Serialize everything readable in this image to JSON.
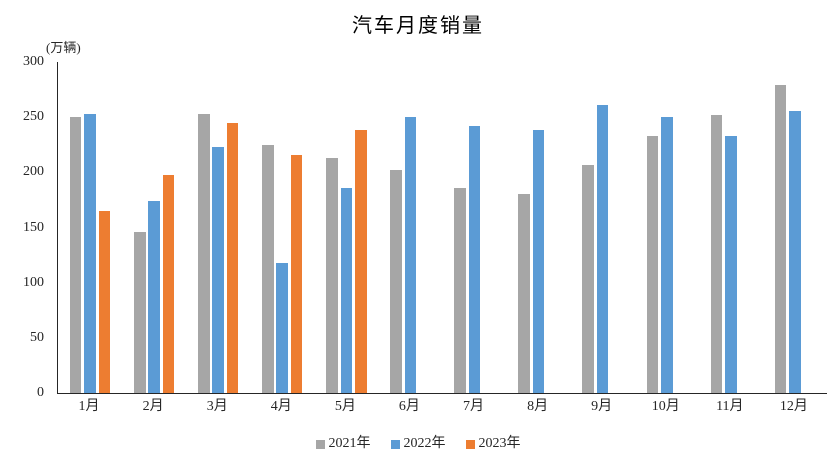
{
  "chart_data": {
    "type": "bar",
    "title": "汽车月度销量",
    "y_unit_label": "(万辆)",
    "categories": [
      "1月",
      "2月",
      "3月",
      "4月",
      "5月",
      "6月",
      "7月",
      "8月",
      "9月",
      "10月",
      "11月",
      "12月"
    ],
    "series": [
      {
        "name": "2021年",
        "color": "#A6A6A6",
        "values": [
          250,
          146,
          253,
          225,
          213,
          202,
          186,
          180,
          207,
          233,
          252,
          279
        ]
      },
      {
        "name": "2022年",
        "color": "#5B9BD5",
        "values": [
          253,
          174,
          223,
          118,
          186,
          250,
          242,
          238,
          261,
          250,
          233,
          256
        ]
      },
      {
        "name": "2023年",
        "color": "#ED7D31",
        "values": [
          165,
          198,
          245,
          216,
          238,
          null,
          null,
          null,
          null,
          null,
          null,
          null
        ]
      }
    ],
    "ylim": [
      0,
      300
    ],
    "yticks": [
      0,
      50,
      100,
      150,
      200,
      250,
      300
    ],
    "grid": false,
    "legend_position": "bottom",
    "axis_color": "#262626",
    "text_color": "#262626",
    "background_color": "#FFFFFF"
  }
}
